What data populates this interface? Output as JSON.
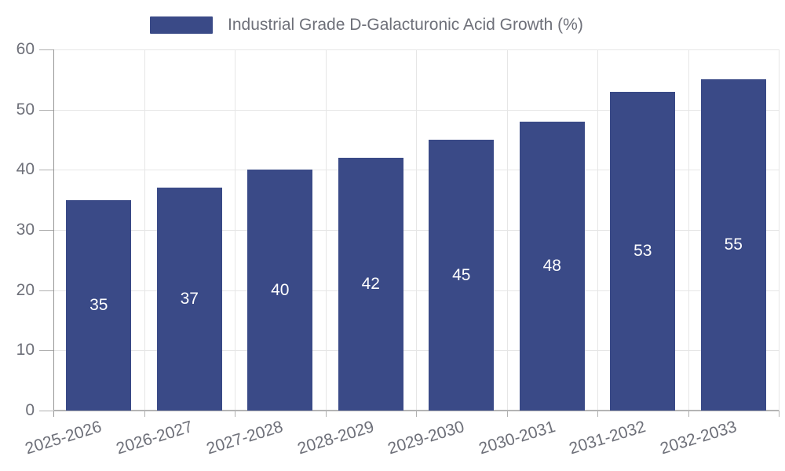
{
  "legend": {
    "label": "Industrial Grade D-Galacturonic Acid Growth (%)",
    "swatch_color": "#3a4a87"
  },
  "chart_data": {
    "type": "bar",
    "title": "Industrial Grade D-Galacturonic Acid Growth (%)",
    "categories": [
      "2025-2026",
      "2026-2027",
      "2027-2028",
      "2028-2029",
      "2029-2030",
      "2030-2031",
      "2031-2032",
      "2032-2033"
    ],
    "values": [
      35,
      37,
      40,
      42,
      45,
      48,
      53,
      55
    ],
    "xlabel": "",
    "ylabel": "",
    "ylim": [
      0,
      60
    ],
    "yticks": [
      0,
      10,
      20,
      30,
      40,
      50,
      60
    ],
    "grid": true,
    "legend_position": "top",
    "bar_color": "#3a4a87",
    "value_label_color": "#ffffff",
    "axis_label_color": "#6e7079"
  }
}
